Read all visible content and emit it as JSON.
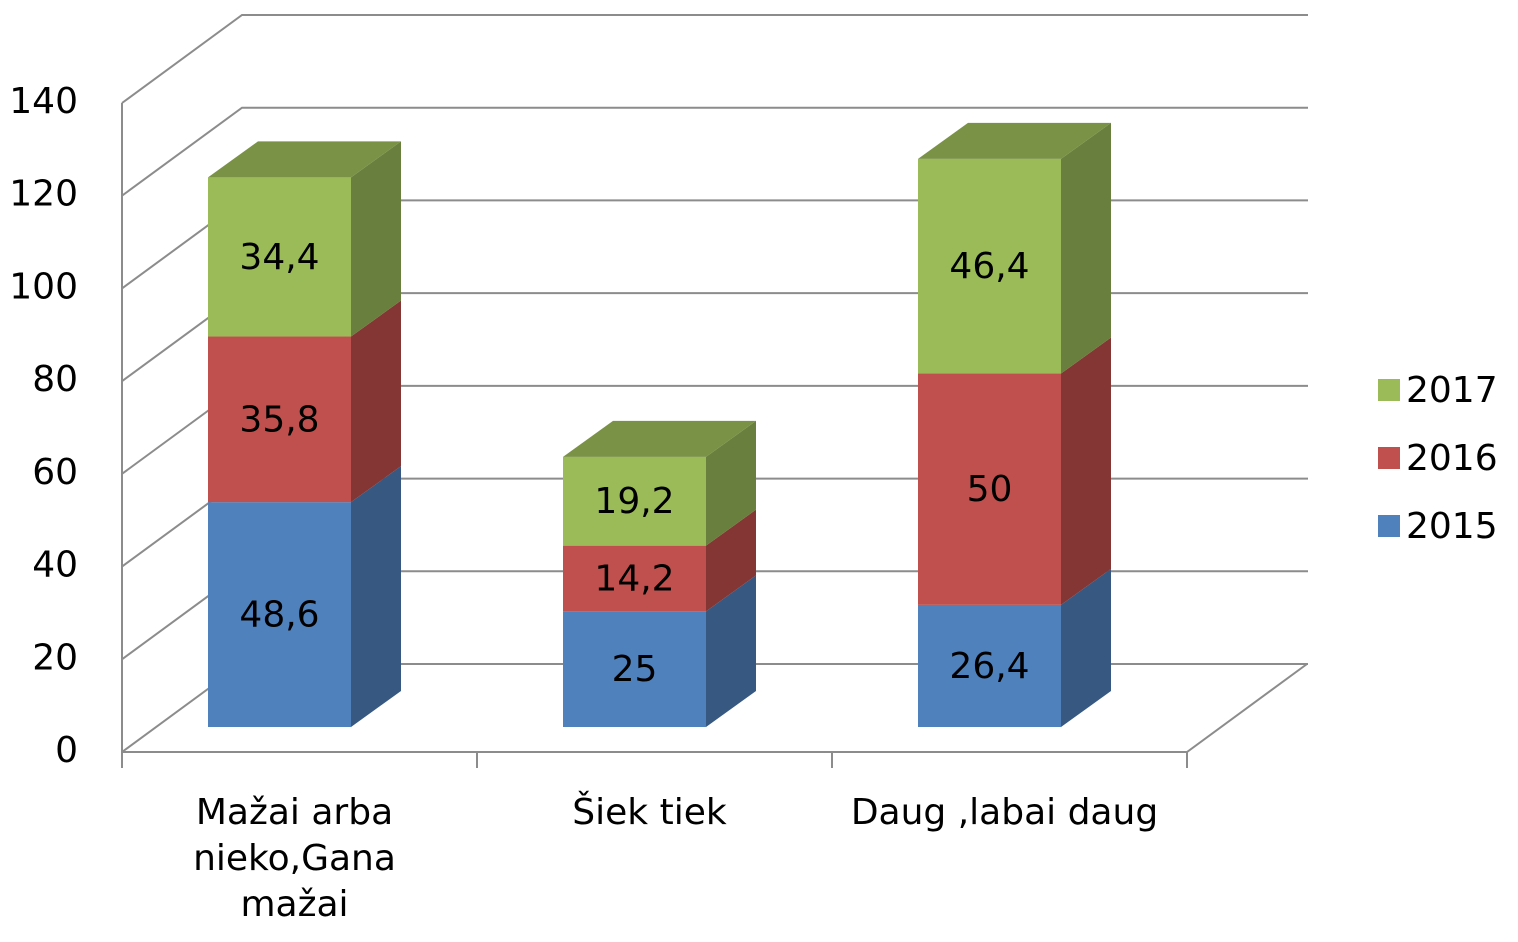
{
  "chart_data": {
    "type": "bar3d-stacked",
    "categories": [
      "Mažai arba nieko,Gana mažai",
      "Šiek tiek",
      "Daug ,labai daug"
    ],
    "series": [
      {
        "name": "2015",
        "color": "#4f81bd",
        "values": [
          48.6,
          25,
          26.4
        ],
        "value_labels": [
          "48,6",
          "25",
          "26,4"
        ]
      },
      {
        "name": "2016",
        "color": "#c0504d",
        "values": [
          35.8,
          14.2,
          50
        ],
        "value_labels": [
          "35,8",
          "14,2",
          "50"
        ]
      },
      {
        "name": "2017",
        "color": "#9bbb59",
        "values": [
          34.4,
          19.2,
          46.4
        ],
        "value_labels": [
          "34,4",
          "19,2",
          "46,4"
        ]
      }
    ],
    "ylim": [
      0,
      140
    ],
    "yticks": [
      0,
      20,
      40,
      60,
      80,
      100,
      120,
      140
    ],
    "grid": true,
    "legend": "right"
  }
}
